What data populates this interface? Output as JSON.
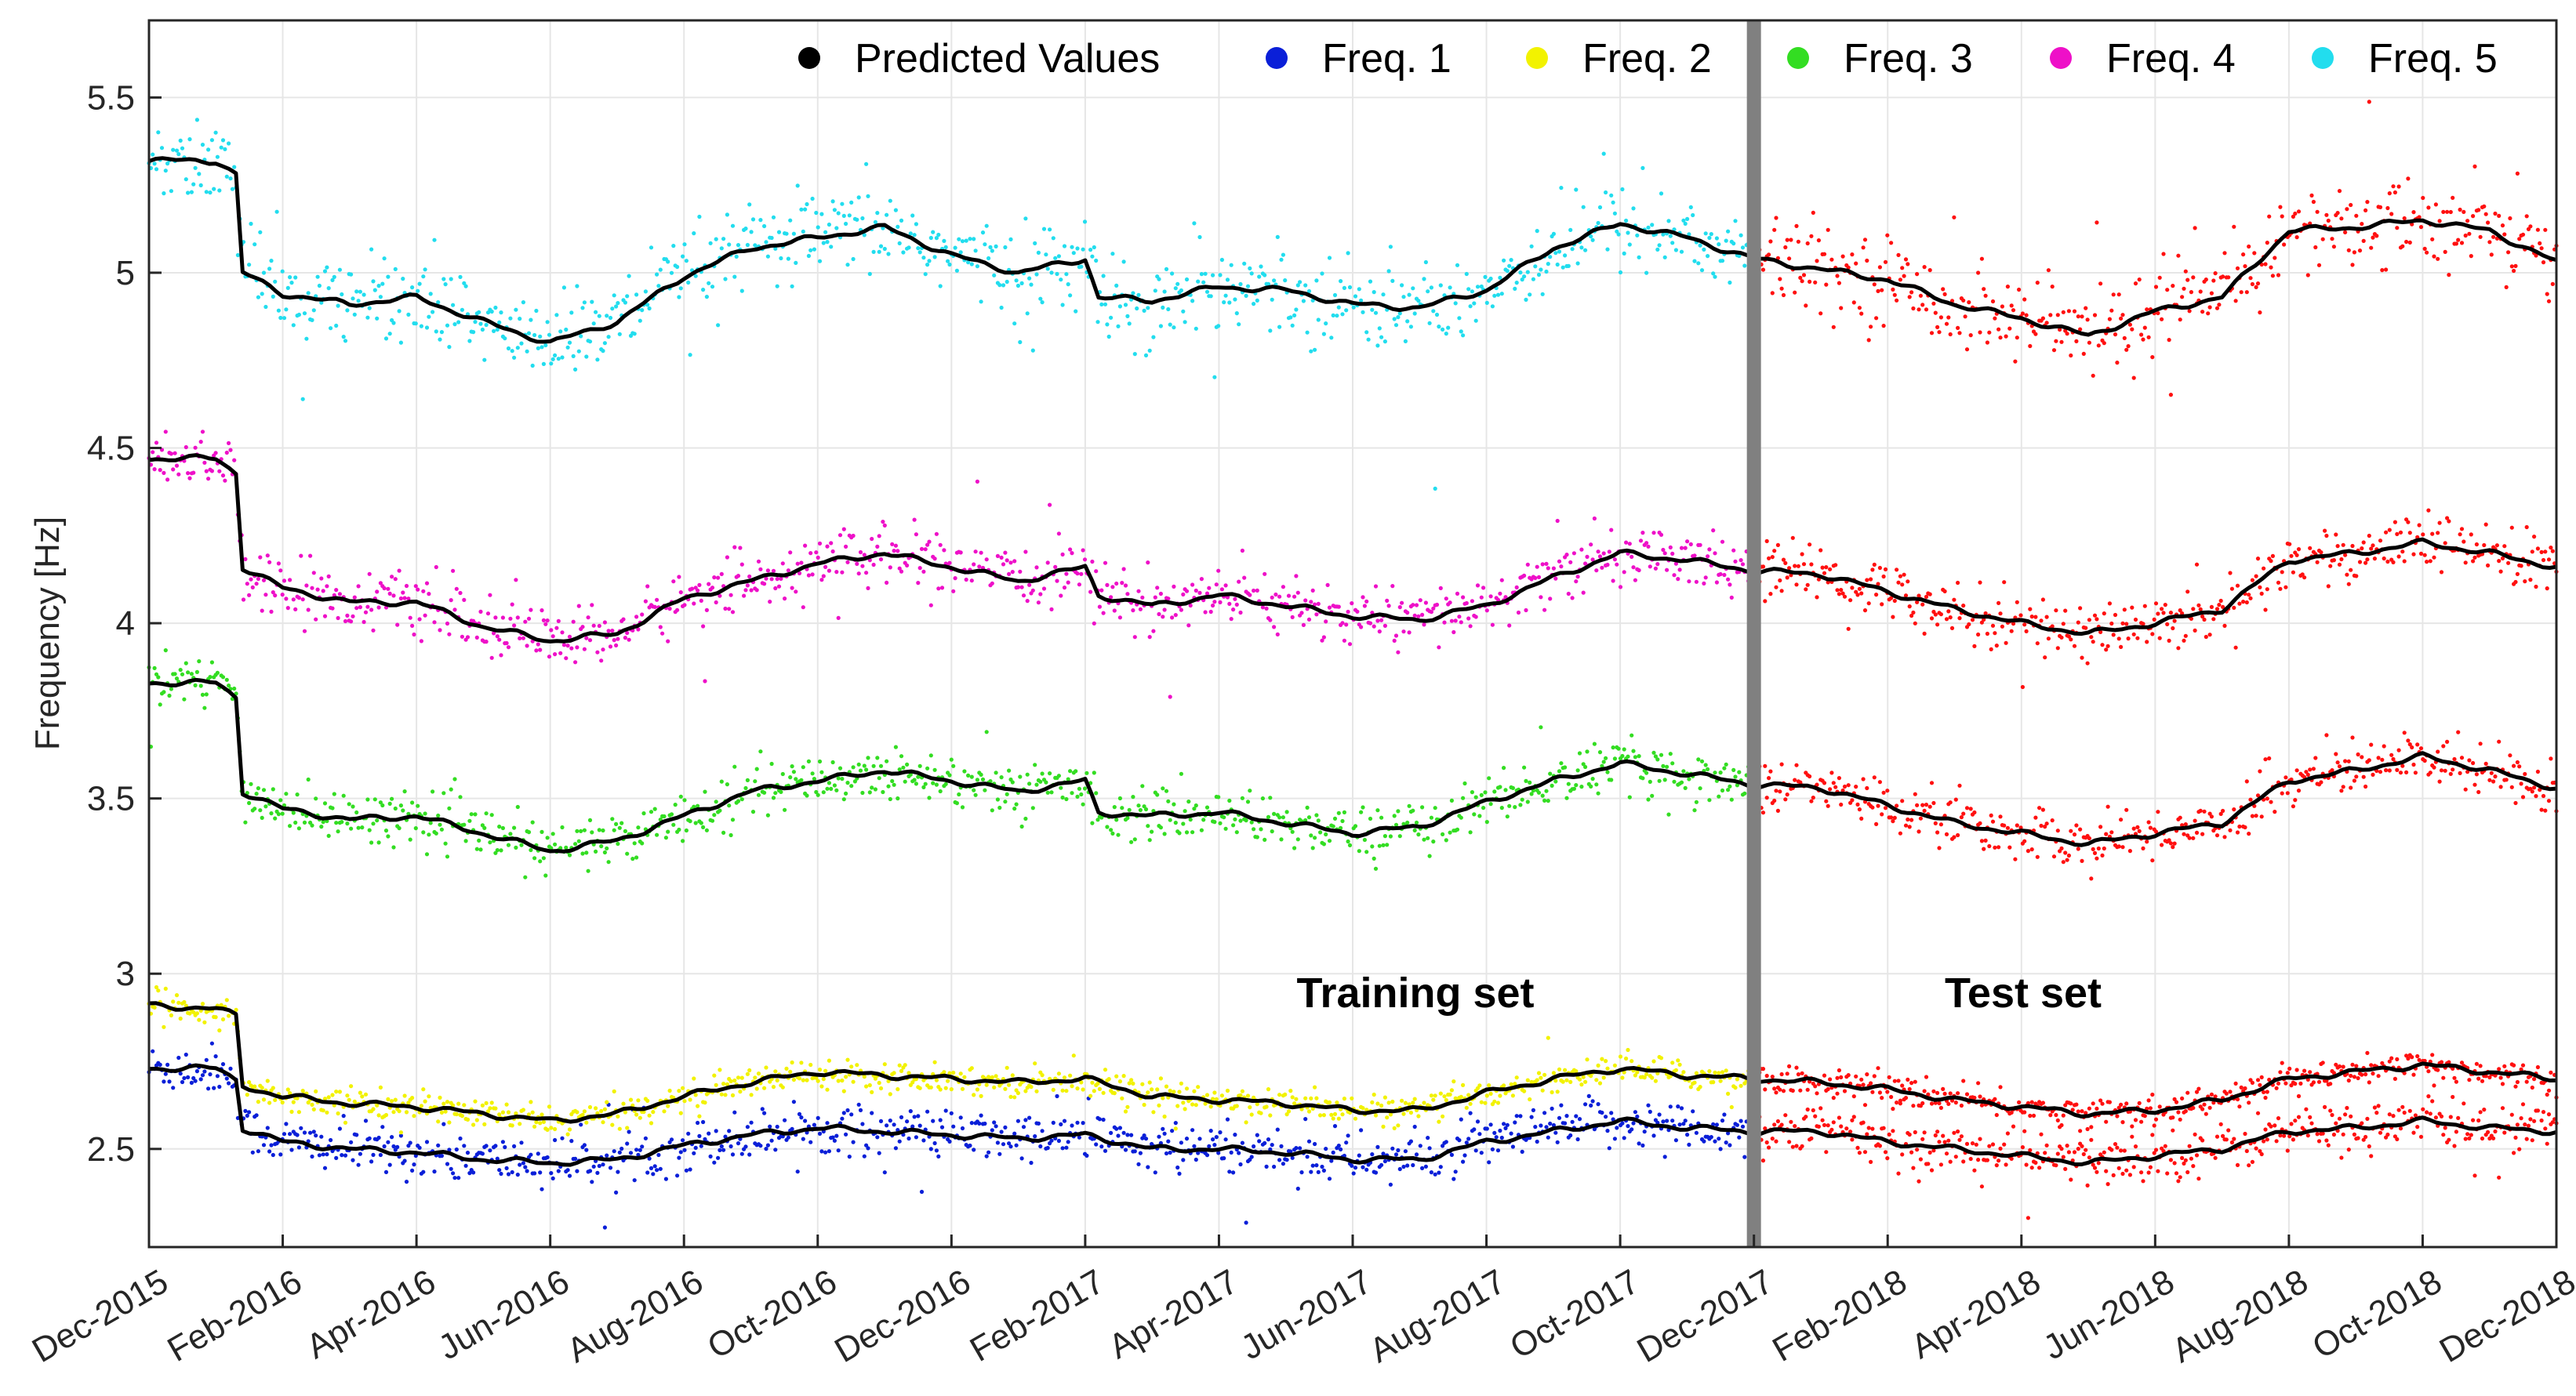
{
  "chart_data": {
    "type": "scatter",
    "title": "",
    "xlabel": "",
    "ylabel": "Frequency [Hz]",
    "ylim": [
      2.22,
      5.72
    ],
    "xlim": [
      0,
      36
    ],
    "yticks": [
      "2.5",
      "3",
      "3.5",
      "4",
      "4.5",
      "5",
      "5.5"
    ],
    "ytick_values": [
      2.5,
      3,
      3.5,
      4,
      4.5,
      5,
      5.5
    ],
    "xticks": [
      "Dec-2015",
      "Feb-2016",
      "Apr-2016",
      "Jun-2016",
      "Aug-2016",
      "Oct-2016",
      "Dec-2016",
      "Feb-2017",
      "Apr-2017",
      "Jun-2017",
      "Aug-2017",
      "Oct-2017",
      "Dec-2017",
      "Feb-2018",
      "Apr-2018",
      "Jun-2018",
      "Aug-2018",
      "Oct-2018",
      "Dec-2018"
    ],
    "xtick_values": [
      0,
      2,
      4,
      6,
      8,
      10,
      12,
      14,
      16,
      18,
      20,
      22,
      24,
      26,
      28,
      30,
      32,
      34,
      36
    ],
    "grid": true,
    "legend_position": "top-right",
    "legend": [
      {
        "label": "Predicted Values",
        "color": "#000000"
      },
      {
        "label": "Freq. 1",
        "color": "#0a1fd8"
      },
      {
        "label": "Freq. 2",
        "color": "#f2f200"
      },
      {
        "label": "Freq. 3",
        "color": "#33dd22"
      },
      {
        "label": "Freq. 4",
        "color": "#ee10c8"
      },
      {
        "label": "Freq. 5",
        "color": "#22ddee"
      }
    ],
    "split_month": 24,
    "split_color": "#808080",
    "test_color": "#ff1010",
    "annotations": [
      "Training set",
      "Test set"
    ],
    "series": [
      {
        "name": "Freq. 1",
        "color": "#0a1fd8",
        "noise": 0.035,
        "x": [
          0,
          1,
          1.3,
          1.4,
          2,
          3,
          4,
          5,
          6,
          7,
          8,
          9,
          10,
          11,
          12,
          13,
          14,
          15,
          16,
          17,
          18,
          19,
          20,
          21,
          22,
          23,
          24,
          25,
          26,
          27,
          28,
          29,
          30,
          31,
          32,
          33,
          34,
          35,
          36
        ],
        "y": [
          2.73,
          2.73,
          2.7,
          2.56,
          2.52,
          2.5,
          2.49,
          2.47,
          2.46,
          2.47,
          2.51,
          2.54,
          2.56,
          2.55,
          2.54,
          2.53,
          2.54,
          2.5,
          2.5,
          2.49,
          2.47,
          2.47,
          2.52,
          2.55,
          2.58,
          2.56,
          2.55,
          2.55,
          2.52,
          2.5,
          2.48,
          2.46,
          2.48,
          2.5,
          2.55,
          2.56,
          2.58,
          2.56,
          2.55
        ]
      },
      {
        "name": "Freq. 2",
        "color": "#f2f200",
        "noise": 0.02,
        "x": [
          0,
          1,
          1.3,
          1.4,
          2,
          3,
          4,
          5,
          6,
          7,
          8,
          9,
          10,
          11,
          12,
          13,
          14,
          15,
          16,
          17,
          18,
          19,
          20,
          21,
          22,
          23,
          24,
          25,
          26,
          27,
          28,
          29,
          30,
          31,
          32,
          33,
          34,
          35,
          36
        ],
        "y": [
          2.91,
          2.9,
          2.88,
          2.68,
          2.65,
          2.63,
          2.62,
          2.6,
          2.58,
          2.6,
          2.65,
          2.69,
          2.72,
          2.71,
          2.7,
          2.69,
          2.7,
          2.65,
          2.64,
          2.63,
          2.61,
          2.61,
          2.66,
          2.7,
          2.73,
          2.71,
          2.7,
          2.69,
          2.67,
          2.64,
          2.62,
          2.6,
          2.61,
          2.64,
          2.7,
          2.72,
          2.74,
          2.72,
          2.7
        ]
      },
      {
        "name": "Freq. 3",
        "color": "#33dd22",
        "noise": 0.035,
        "x": [
          0,
          1,
          1.3,
          1.4,
          2,
          3,
          4,
          5,
          6,
          7,
          8,
          9,
          10,
          11,
          12,
          13,
          14,
          14.2,
          15,
          16,
          17,
          18,
          19,
          20,
          21,
          22,
          23,
          24,
          25,
          26,
          27,
          28,
          29,
          30,
          31,
          32,
          33,
          34,
          35,
          36
        ],
        "y": [
          3.83,
          3.83,
          3.79,
          3.52,
          3.47,
          3.44,
          3.45,
          3.4,
          3.35,
          3.38,
          3.45,
          3.52,
          3.55,
          3.58,
          3.55,
          3.52,
          3.55,
          3.46,
          3.45,
          3.46,
          3.43,
          3.4,
          3.42,
          3.49,
          3.55,
          3.6,
          3.57,
          3.54,
          3.53,
          3.48,
          3.43,
          3.4,
          3.37,
          3.4,
          3.43,
          3.55,
          3.58,
          3.62,
          3.58,
          3.53
        ]
      },
      {
        "name": "Freq. 4",
        "color": "#ee10c8",
        "noise": 0.04,
        "x": [
          0,
          1,
          1.3,
          1.4,
          2,
          3,
          4,
          5,
          6,
          7,
          8,
          9,
          10,
          11,
          12,
          13,
          14,
          14.2,
          15,
          16,
          17,
          18,
          19,
          20,
          21,
          22,
          23,
          24,
          25,
          26,
          27,
          28,
          29,
          30,
          31,
          32,
          33,
          34,
          35,
          36
        ],
        "y": [
          4.47,
          4.47,
          4.43,
          4.16,
          4.1,
          4.06,
          4.06,
          3.99,
          3.95,
          3.97,
          4.07,
          4.12,
          4.17,
          4.2,
          4.16,
          4.12,
          4.16,
          4.08,
          4.05,
          4.08,
          4.05,
          4.02,
          4.01,
          4.05,
          4.13,
          4.2,
          4.18,
          4.15,
          4.14,
          4.09,
          4.04,
          4.0,
          3.97,
          4.0,
          4.04,
          4.18,
          4.2,
          4.23,
          4.2,
          4.16
        ]
      },
      {
        "name": "Freq. 5",
        "color": "#22ddee",
        "noise": 0.06,
        "x": [
          0,
          1,
          1.3,
          1.4,
          2,
          3,
          4,
          5,
          6,
          7,
          8,
          9,
          10,
          11,
          12,
          13,
          14,
          14.2,
          15,
          16,
          17,
          18,
          19,
          20,
          21,
          22,
          23,
          24,
          25,
          26,
          27,
          28,
          29,
          30,
          31,
          32,
          33,
          34,
          35,
          36
        ],
        "y": [
          5.32,
          5.32,
          5.28,
          5.0,
          4.94,
          4.91,
          4.93,
          4.86,
          4.8,
          4.86,
          4.99,
          5.07,
          5.1,
          5.13,
          5.05,
          5.0,
          5.04,
          4.93,
          4.92,
          4.96,
          4.95,
          4.91,
          4.9,
          4.95,
          5.07,
          5.14,
          5.1,
          5.04,
          5.01,
          4.98,
          4.91,
          4.87,
          4.82,
          4.89,
          4.93,
          5.12,
          5.13,
          5.15,
          5.12,
          5.03
        ]
      }
    ]
  }
}
